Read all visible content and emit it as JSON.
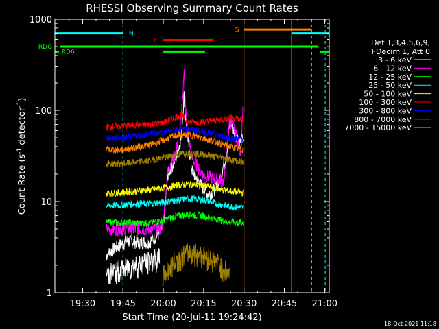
{
  "chart_data": {
    "type": "line",
    "title": "RHESSI Observing Summary Count Rates",
    "xlabel": "Start Time (20-Jul-11 19:24:42)",
    "ylabel_main": "Count Rate (s",
    "ylabel_sup1": "-1",
    "ylabel_mid": " detector",
    "ylabel_sup2": "-1",
    "ylabel_end": ")",
    "y_scale": "log",
    "ylim": [
      1,
      1000
    ],
    "xlim_minutes": [
      -5,
      97
    ],
    "x_tick_labels": [
      "19:30",
      "19:45",
      "20:00",
      "20:15",
      "20:30",
      "20:45",
      "21:00"
    ],
    "x_tick_minutes": [
      5.3,
      20.3,
      35.3,
      50.3,
      65.3,
      80.3,
      95.3
    ],
    "y_tick_labels": [
      "1",
      "10",
      "100",
      "1000"
    ],
    "y_tick_values": [
      1,
      10,
      100,
      1000
    ],
    "legend_title_1": "Det 1,3,4,5,6,9,",
    "legend_title_2": "FDecim 1, Att 0",
    "legend_position": "right",
    "timestamp": "18-Oct-2021 11:18",
    "series": [
      {
        "name": "3 - 6 keV",
        "color": "#ffffff",
        "x": [
          14,
          18,
          22,
          26,
          30,
          34,
          35.5,
          37,
          40,
          42,
          43,
          44,
          46,
          50,
          52,
          54,
          56,
          59,
          60,
          62,
          64,
          65
        ],
        "y": [
          2.6,
          3.2,
          3.7,
          3.6,
          3.6,
          4.5,
          6,
          20,
          30,
          50,
          150,
          60,
          22,
          14,
          12,
          13,
          16,
          35,
          75,
          55,
          45,
          50
        ]
      },
      {
        "name": "6 - 12 keV",
        "color": "#ff00ff",
        "x": [
          14,
          35,
          37,
          40,
          42,
          43,
          44,
          46,
          50,
          54,
          58,
          59,
          60,
          62,
          64,
          65
        ],
        "y": [
          5,
          5,
          22,
          35,
          80,
          270,
          70,
          30,
          20,
          18,
          17,
          40,
          80,
          60,
          35,
          120
        ]
      },
      {
        "name": "12 - 25 keV",
        "color": "#00ff00",
        "x": [
          14,
          20,
          25,
          30,
          35,
          40,
          45,
          50,
          55,
          60,
          65
        ],
        "y": [
          5.9,
          5.9,
          5.8,
          5.8,
          6.2,
          6.9,
          7.2,
          7.0,
          6.4,
          5.9,
          5.9
        ]
      },
      {
        "name": "25 - 50 keV",
        "color": "#00ffff",
        "x": [
          14,
          20,
          25,
          30,
          35,
          40,
          45,
          50,
          55,
          60,
          65
        ],
        "y": [
          9.0,
          9.2,
          9.5,
          9.5,
          9.8,
          10.3,
          10.8,
          10.5,
          9.5,
          8.8,
          8.6
        ]
      },
      {
        "name": "50 - 100 keV",
        "color": "#ffff00",
        "x": [
          14,
          20,
          25,
          30,
          35,
          40,
          45,
          50,
          55,
          60,
          65
        ],
        "y": [
          12.3,
          12.6,
          13.0,
          13.4,
          14.0,
          15.0,
          15.5,
          15.0,
          14.0,
          13.0,
          12.5
        ]
      },
      {
        "name": "100 - 300 keV",
        "color": "#ff0000",
        "x": [
          14,
          20,
          25,
          30,
          35,
          38,
          40,
          42,
          44,
          46,
          50,
          55,
          59,
          60,
          62,
          64,
          65
        ],
        "y": [
          66,
          67,
          69,
          70,
          73,
          80,
          85,
          90,
          75,
          74,
          75,
          78,
          82,
          85,
          82,
          80,
          80
        ]
      },
      {
        "name": "300 - 800 keV",
        "color": "#0000ff",
        "x": [
          14,
          20,
          25,
          30,
          35,
          40,
          45,
          50,
          55,
          60,
          65
        ],
        "y": [
          49,
          50,
          52,
          55,
          58,
          62,
          62,
          58,
          54,
          50,
          48
        ]
      },
      {
        "name": "800 - 7000 keV",
        "color": "#ff8000",
        "x": [
          14,
          20,
          25,
          30,
          35,
          40,
          45,
          50,
          55,
          60,
          65
        ],
        "y": [
          37,
          37,
          39,
          42,
          47,
          53,
          54,
          50,
          45,
          40,
          37
        ]
      },
      {
        "name": "7000 - 15000 keV",
        "color": "#a08000",
        "x": [
          14,
          20,
          25,
          30,
          35,
          40,
          45,
          50,
          55,
          60,
          65
        ],
        "y": [
          26,
          26,
          27,
          28,
          30,
          33,
          34,
          33,
          31,
          29,
          27
        ]
      }
    ],
    "bottom_curves": [
      {
        "name": "low-counts-3-6",
        "color": "#ffffff",
        "x": [
          14,
          20,
          25,
          34
        ],
        "y": [
          1.6,
          1.8,
          2.0,
          2.4
        ]
      },
      {
        "name": "low-counts-7000",
        "color": "#a08000",
        "x": [
          35,
          40,
          45,
          50,
          55,
          60
        ],
        "y": [
          1.5,
          2.3,
          2.8,
          2.6,
          2.2,
          1.6
        ]
      }
    ],
    "flag_bars": [
      {
        "label": "N",
        "color": "#00ffff",
        "ranges": [
          [
            -5,
            20.3
          ],
          [
            83,
            97
          ]
        ],
        "level": 700
      },
      {
        "label": "F",
        "color": "#ff0000",
        "ranges": [
          [
            35.3,
            54
          ]
        ],
        "level": 590
      },
      {
        "label": "S",
        "color": "#ff8000",
        "ranges": [
          [
            65.3,
            90.5
          ]
        ],
        "level": 770
      },
      {
        "label": "RDG",
        "color": "#00ff00",
        "ranges": [
          [
            -3,
            93
          ]
        ],
        "level": 500
      },
      {
        "label": "RD6",
        "color": "#00ff00",
        "ranges": [
          [
            -5,
            -3.5
          ],
          [
            35.3,
            50.8
          ],
          [
            93.5,
            97
          ]
        ],
        "level": 440
      }
    ],
    "vertical_markers": [
      {
        "name": "cyan-solid",
        "color": "#00ffff",
        "x": -5.0,
        "style": "solid"
      },
      {
        "name": "cyan-dashed",
        "color": "#00ffff",
        "x": 20.3,
        "style": "dashed"
      },
      {
        "name": "orange-solid-start",
        "color": "#ff8000",
        "x": 14,
        "style": "solid"
      },
      {
        "name": "orange-solid-end",
        "color": "#ff8000",
        "x": 65.3,
        "style": "solid"
      },
      {
        "name": "cyan-solid-2",
        "color": "#00ffff",
        "x": 83.0,
        "style": "solid"
      },
      {
        "name": "orange-dashed",
        "color": "#ff8000",
        "x": 90.5,
        "style": "dashed"
      },
      {
        "name": "cyan-dashed-2",
        "color": "#00ffff",
        "x": 95.5,
        "style": "dashed"
      }
    ]
  }
}
